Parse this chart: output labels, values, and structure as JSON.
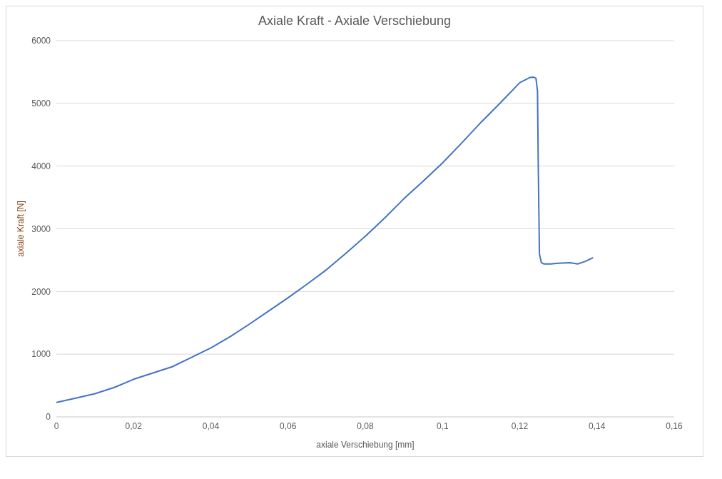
{
  "chart_data": {
    "type": "line",
    "title": "Axiale Kraft - Axiale Verschiebung",
    "xlabel": "axiale Verschiebung [mm]",
    "ylabel": "axiale Kraft [N]",
    "x": [
      0,
      0.005,
      0.01,
      0.015,
      0.02,
      0.025,
      0.03,
      0.035,
      0.04,
      0.045,
      0.05,
      0.055,
      0.06,
      0.065,
      0.07,
      0.075,
      0.08,
      0.085,
      0.09,
      0.095,
      0.1,
      0.105,
      0.11,
      0.115,
      0.12,
      0.1225,
      0.1235,
      0.1242,
      0.1246,
      0.1248,
      0.1251,
      0.1256,
      0.1262,
      0.128,
      0.13,
      0.133,
      0.135,
      0.137,
      0.139
    ],
    "series": [
      {
        "color": "#4472c4",
        "values": [
          230,
          300,
          370,
          470,
          600,
          700,
          800,
          950,
          1100,
          1280,
          1480,
          1690,
          1900,
          2120,
          2350,
          2610,
          2880,
          3170,
          3480,
          3760,
          4050,
          4370,
          4700,
          5010,
          5330,
          5410,
          5420,
          5400,
          5200,
          4000,
          2600,
          2460,
          2440,
          2440,
          2450,
          2460,
          2440,
          2480,
          2540
        ]
      }
    ],
    "xlim": [
      0,
      0.16
    ],
    "xticks": [
      0,
      {
        "value": 0.02,
        "label": "0,02"
      },
      {
        "value": 0.04,
        "label": "0,04"
      },
      {
        "value": 0.06,
        "label": "0,06"
      },
      {
        "value": 0.08,
        "label": "0,08"
      },
      {
        "value": 0.1,
        "label": "0,1"
      },
      {
        "value": 0.12,
        "label": "0,12"
      },
      {
        "value": 0.14,
        "label": "0,14"
      },
      {
        "value": 0.16,
        "label": "0,16"
      }
    ],
    "ylim": [
      0,
      6000
    ],
    "yticks": [
      0,
      1000,
      2000,
      3000,
      4000,
      5000,
      6000
    ],
    "grid": "y",
    "legend": false,
    "marker": "none",
    "line_style": "solid"
  }
}
